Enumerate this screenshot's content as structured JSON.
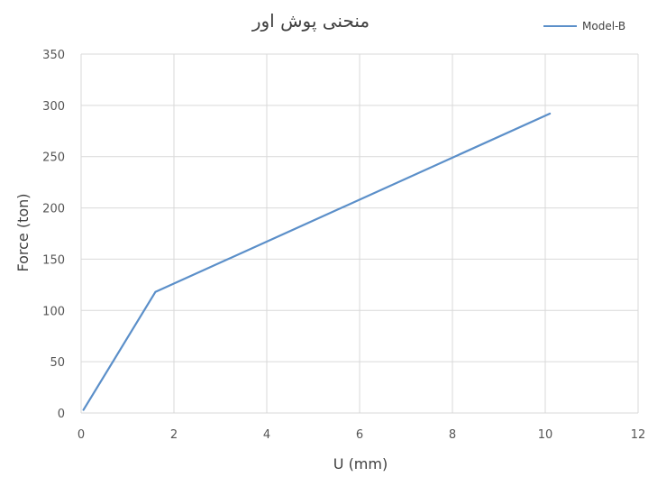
{
  "chart_data": {
    "type": "line",
    "title": "منحنی پوش اور",
    "xlabel": "U (mm)",
    "ylabel": "Force (ton)",
    "xlim": [
      0,
      12
    ],
    "ylim": [
      0,
      350
    ],
    "xticks": [
      0,
      2,
      4,
      6,
      8,
      10,
      12
    ],
    "yticks": [
      0,
      50,
      100,
      150,
      200,
      250,
      300,
      350
    ],
    "grid": true,
    "legend_position": "top-right",
    "series": [
      {
        "name": "Model-B",
        "color": "#5b8fc9",
        "x": [
          0.05,
          1.6,
          10.1
        ],
        "y": [
          3,
          118,
          292
        ]
      }
    ]
  }
}
